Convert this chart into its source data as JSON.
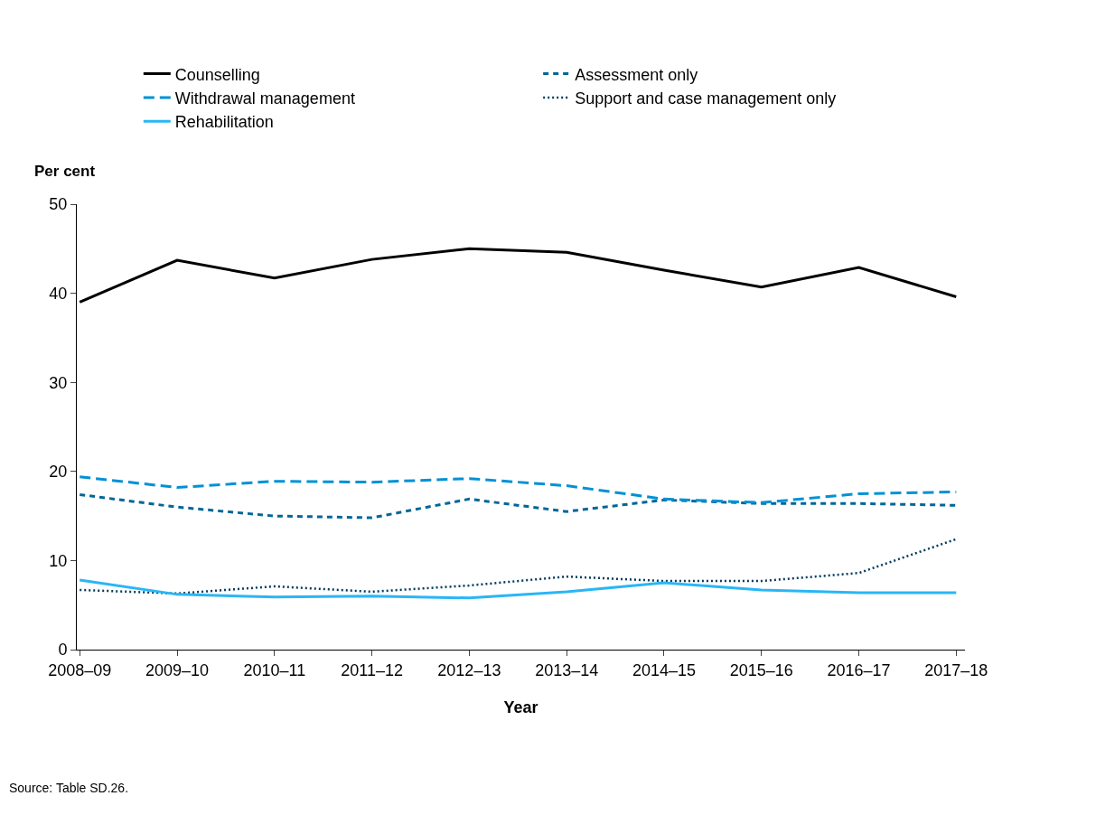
{
  "chart_data": {
    "type": "line",
    "xlabel": "Year",
    "ylabel": "Per cent",
    "categories": [
      "2008–09",
      "2009–10",
      "2010–11",
      "2011–12",
      "2012–13",
      "2013–14",
      "2014–15",
      "2015–16",
      "2016–17",
      "2017–18"
    ],
    "series": [
      {
        "name": "Counselling",
        "color": "#000000",
        "line_style": "solid",
        "values": [
          39.0,
          43.7,
          41.7,
          43.8,
          45.0,
          44.6,
          42.6,
          40.7,
          42.9,
          39.6
        ]
      },
      {
        "name": "Assessment only",
        "color": "#006699",
        "line_style": "dashed",
        "values": [
          17.4,
          16.0,
          15.0,
          14.8,
          16.9,
          15.5,
          16.8,
          16.4,
          16.4,
          16.2
        ]
      },
      {
        "name": "Withdrawal management",
        "color": "#0091d5",
        "line_style": "dashed",
        "values": [
          19.4,
          18.2,
          18.9,
          18.8,
          19.2,
          18.4,
          16.9,
          16.5,
          17.5,
          17.7
        ]
      },
      {
        "name": "Support and case management only",
        "color": "#003a5c",
        "line_style": "dotted",
        "values": [
          6.7,
          6.3,
          7.1,
          6.5,
          7.2,
          8.2,
          7.7,
          7.7,
          8.6,
          12.4
        ]
      },
      {
        "name": "Rehabilitation",
        "color": "#29b6f6",
        "line_style": "solid",
        "values": [
          7.8,
          6.2,
          5.9,
          6.0,
          5.8,
          6.5,
          7.5,
          6.7,
          6.4,
          6.4
        ]
      }
    ],
    "ylim": [
      0,
      50
    ],
    "yticks": [
      0,
      10,
      20,
      30,
      40,
      50
    ],
    "legend": "top",
    "annotations": [
      "Source: Table SD.26."
    ]
  }
}
